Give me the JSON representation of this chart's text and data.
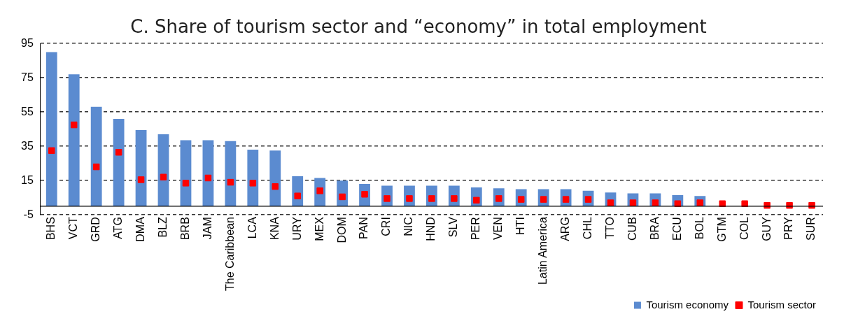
{
  "chart_data": {
    "type": "bar",
    "title": "C. Share of tourism sector and “economy” in total employment",
    "categories": [
      "BHS",
      "VCT",
      "GRD",
      "ATG",
      "DMA",
      "BLZ",
      "BRB",
      "JAM",
      "The Caribbean",
      "LCA",
      "KNA",
      "URY",
      "MEX",
      "DOM",
      "PAN",
      "CRI",
      "NIC",
      "HND",
      "SLV",
      "PER",
      "VEN",
      "HTI",
      "Latin America",
      "ARG",
      "CHL",
      "TTO",
      "CUB",
      "BRA",
      "ECU",
      "BOL",
      "GTM",
      "COL",
      "GUY",
      "PRY",
      "SUR"
    ],
    "series": [
      {
        "name": "Tourism economy",
        "color": "#5b8bd0",
        "values": [
          90,
          77,
          58,
          51,
          44.5,
          42,
          38.5,
          38.5,
          38,
          33,
          32.5,
          17.5,
          16.5,
          15,
          13,
          12,
          12,
          12,
          12,
          11,
          10.5,
          10,
          10,
          10,
          9,
          8,
          7.5,
          7.5,
          6.5,
          6,
          null,
          null,
          null,
          null,
          null
        ]
      },
      {
        "name": "Tourism sector",
        "type": "scatter",
        "color": "#ff0000",
        "values": [
          32.5,
          47.5,
          23,
          31.5,
          15.5,
          17,
          13.5,
          16.5,
          14,
          13.5,
          11.5,
          6,
          9,
          5.5,
          7,
          4.5,
          4.5,
          4.5,
          4.5,
          3.5,
          4.5,
          4,
          4,
          4,
          4,
          2,
          2,
          2,
          1.5,
          2,
          1.5,
          1.5,
          0.5,
          0.5,
          0.5
        ]
      }
    ],
    "ylim": [
      -5,
      95
    ],
    "yticks": [
      -5,
      15,
      35,
      55,
      75,
      95
    ],
    "grid": "y",
    "legend": "bottom right",
    "marker": "square"
  }
}
